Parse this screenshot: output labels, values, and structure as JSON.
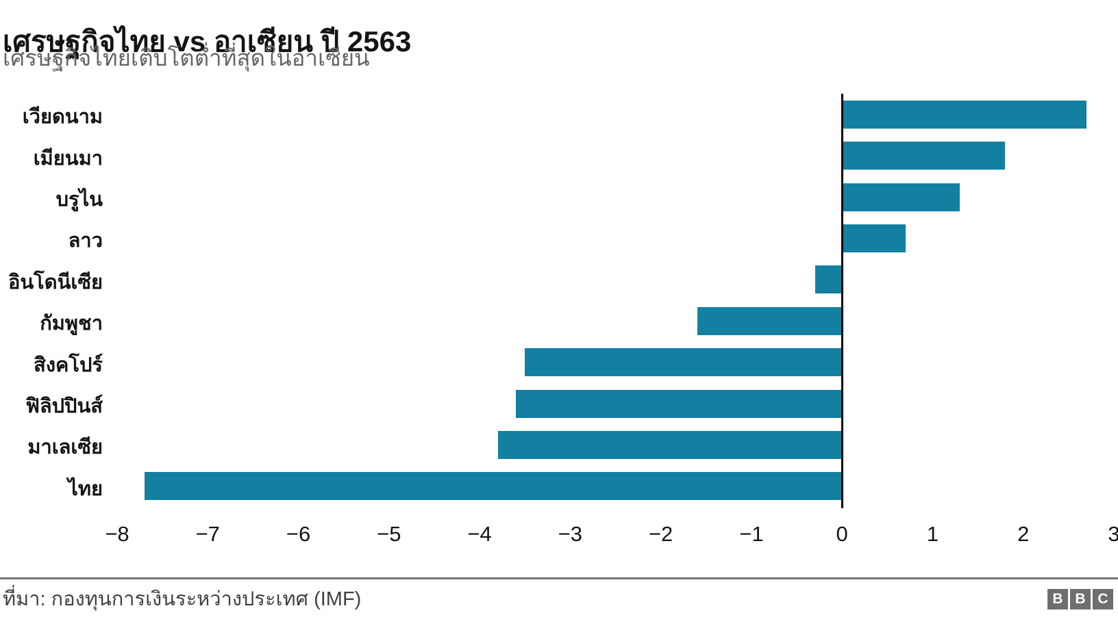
{
  "header": {
    "title": "เศรษฐกิจไทย vs อาเซียน ปี 2563",
    "subtitle": "เศรษฐกิจไทยเติบโตต่ำที่สุดในอาเซียน"
  },
  "chart_data": {
    "type": "bar",
    "orientation": "horizontal",
    "title": "เศรษฐกิจไทย vs อาเซียน ปี 2563",
    "subtitle": "เศรษฐกิจไทยเติบโตต่ำที่สุดในอาเซียน",
    "categories": [
      "เวียดนาม",
      "เมียนมา",
      "บรูไน",
      "ลาว",
      "อินโดนีเซีย",
      "กัมพูชา",
      "สิงคโปร์",
      "ฟิลิปปินส์",
      "มาเลเซีย",
      "ไทย"
    ],
    "values": [
      2.7,
      1.8,
      1.3,
      0.7,
      -0.3,
      -1.6,
      -3.5,
      -3.6,
      -3.8,
      -7.7
    ],
    "xlim": [
      -8,
      3
    ],
    "xticks": [
      -8,
      -7,
      -6,
      -5,
      -4,
      -3,
      -2,
      -1,
      0,
      1,
      2,
      3
    ],
    "xtick_labels": [
      "−8",
      "−7",
      "−6",
      "−5",
      "−4",
      "−3",
      "−2",
      "−1",
      "0",
      "1",
      "2",
      "3"
    ],
    "grid": false,
    "legend": false,
    "bar_color": "#1380A1",
    "zero_line_color": "#000000"
  },
  "footer": {
    "source": "ที่มา: กองทุนการเงินระหว่างประเทศ (IMF)",
    "logo_letters": [
      "B",
      "B",
      "C"
    ]
  },
  "colors": {
    "bar": "#1380A1",
    "title_text": "#141414",
    "subtitle_text": "#666666",
    "tick_text": "#141414",
    "source_text": "#404040",
    "divider": "#757575",
    "logo_background": "#6E6E6E",
    "background": "#ffffff"
  }
}
